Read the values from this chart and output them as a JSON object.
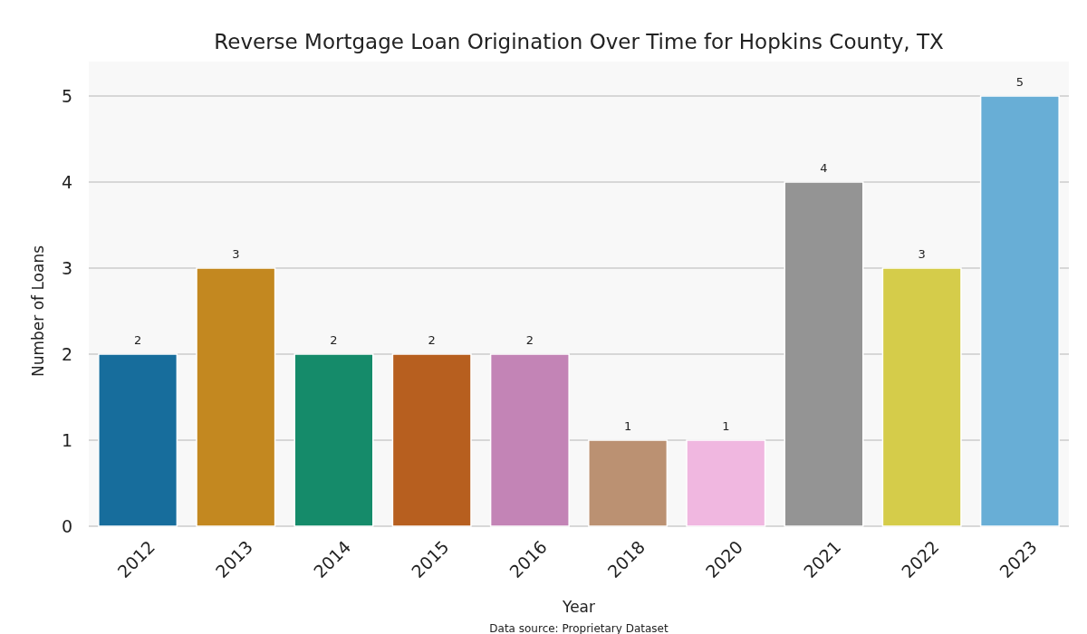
{
  "chart_data": {
    "type": "bar",
    "title": "Reverse Mortgage Loan Origination Over Time for Hopkins County, TX",
    "xlabel": "Year",
    "ylabel": "Number of Loans",
    "categories": [
      "2012",
      "2013",
      "2014",
      "2015",
      "2016",
      "2018",
      "2020",
      "2021",
      "2022",
      "2023"
    ],
    "values": [
      2,
      3,
      2,
      2,
      2,
      1,
      1,
      4,
      3,
      5
    ],
    "colors": [
      "#176d9c",
      "#c38820",
      "#158b6a",
      "#b75f1f",
      "#c384b6",
      "#bb9172",
      "#f0b7e0",
      "#949494",
      "#d5cc4a",
      "#68aed6"
    ],
    "ylim": [
      0,
      5
    ],
    "yticks": [
      0,
      1,
      2,
      3,
      4,
      5
    ],
    "grid": "y",
    "data_labels": true,
    "annotations": [
      "Data source: Proprietary Dataset"
    ]
  }
}
